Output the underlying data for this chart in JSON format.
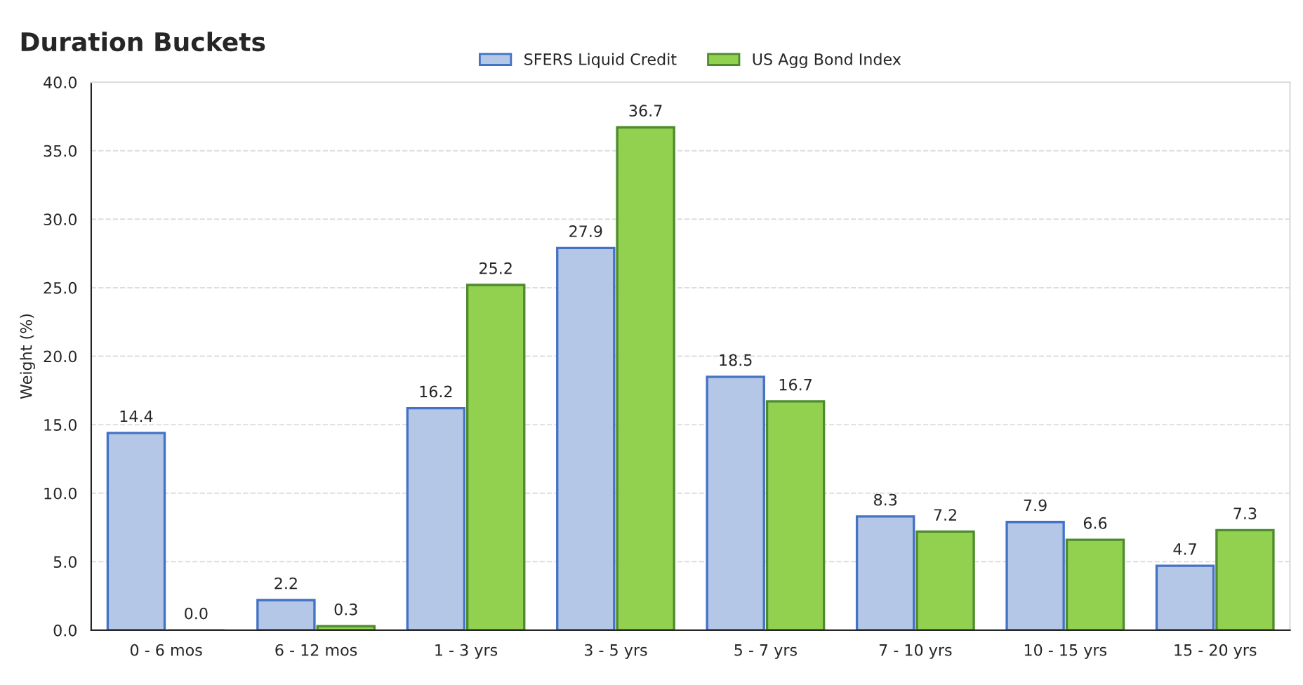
{
  "chart_data": {
    "type": "bar",
    "title": "Duration Buckets",
    "ylabel": "Weight (%)",
    "categories": [
      "0 - 6 mos",
      "6 - 12 mos",
      "1 - 3 yrs",
      "3 - 5 yrs",
      "5 - 7 yrs",
      "7 - 10 yrs",
      "10 - 15 yrs",
      "15 - 20 yrs"
    ],
    "series": [
      {
        "name": "SFERS Liquid Credit",
        "color": "#b4c7e7",
        "values": [
          14.4,
          2.2,
          16.2,
          27.9,
          18.5,
          8.3,
          7.9,
          4.7
        ],
        "value_labels": [
          "14.4",
          "2.2",
          "16.2",
          "27.9",
          "18.5",
          "8.3",
          "7.9",
          "4.7"
        ]
      },
      {
        "name": "US Agg Bond Index",
        "color": "#92d050",
        "values": [
          0.0,
          0.3,
          25.2,
          36.7,
          16.7,
          7.2,
          6.6,
          7.3
        ],
        "value_labels": [
          "0.0",
          "0.3",
          "25.2",
          "36.7",
          "16.7",
          "7.2",
          "6.6",
          "7.3"
        ]
      }
    ],
    "ylim": [
      0,
      40
    ],
    "yticks": [
      {
        "value": 0,
        "label": "0.0"
      },
      {
        "value": 5,
        "label": "5.0"
      },
      {
        "value": 10,
        "label": "10.0"
      },
      {
        "value": 15,
        "label": "15.0"
      },
      {
        "value": 20,
        "label": "20.0"
      },
      {
        "value": 25,
        "label": "25.0"
      },
      {
        "value": 30,
        "label": "30.0"
      },
      {
        "value": 35,
        "label": "35.0"
      },
      {
        "value": 40,
        "label": "40.0"
      }
    ],
    "grid": "y",
    "legend": "top"
  }
}
